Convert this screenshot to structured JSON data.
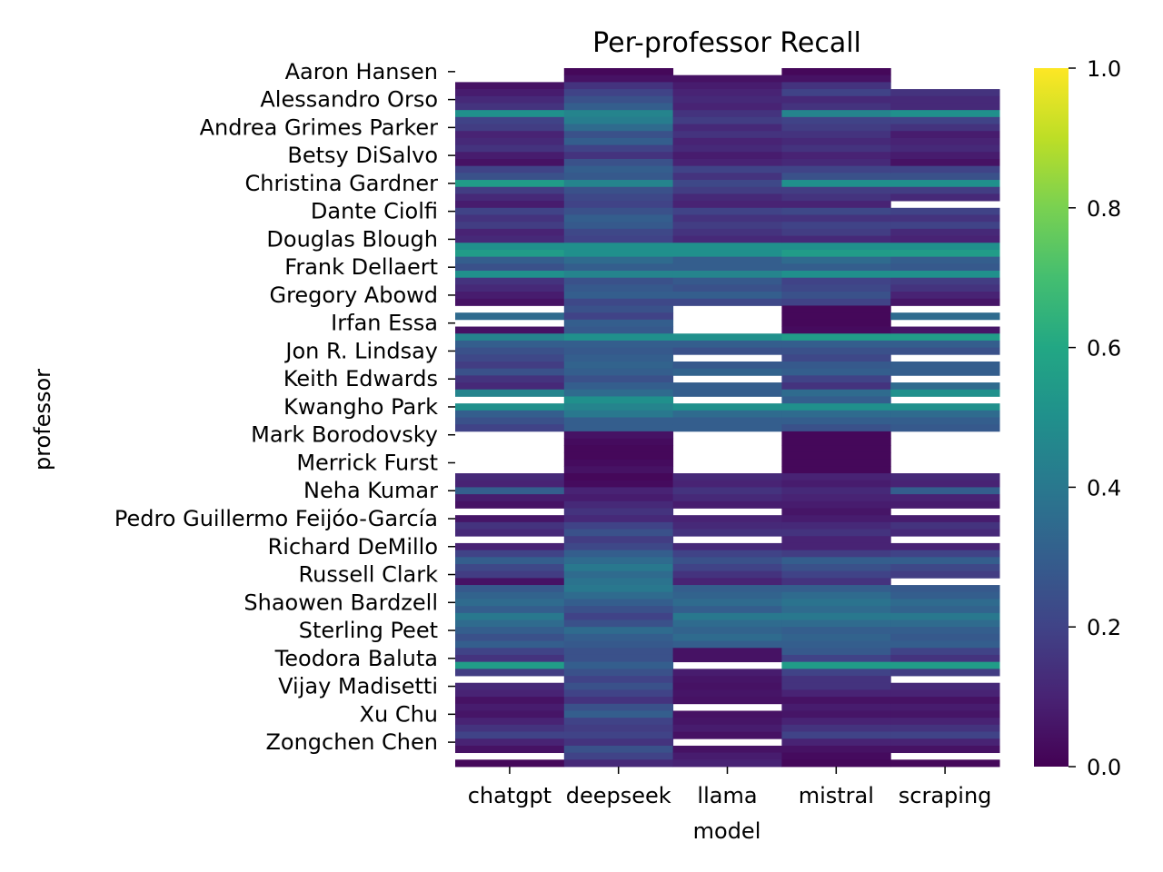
{
  "chart_data": {
    "type": "heatmap",
    "title": "Per-professor Recall",
    "xlabel": "model",
    "ylabel": "professor",
    "x_categories": [
      "chatgpt",
      "deepseek",
      "llama",
      "mistral",
      "scraping"
    ],
    "y_tick_labels": [
      "Aaron Hansen",
      "Alessandro Orso",
      "Andrea Grimes Parker",
      "Betsy DiSalvo",
      "Christina Gardner",
      "Dante Ciolfi",
      "Douglas Blough",
      "Frank Dellaert",
      "Gregory Abowd",
      "Irfan Essa",
      "Jon R. Lindsay",
      "Keith Edwards",
      "Kwangho Park",
      "Mark Borodovsky",
      "Merrick Furst",
      "Neha Kumar",
      "Pedro Guillermo Feijóo-García",
      "Richard DeMillo",
      "Russell Clark",
      "Shaowen Bardzell",
      "Sterling Peet",
      "Teodora Baluta",
      "Vijay Madisetti",
      "Xu Chu",
      "Zongchen Chen"
    ],
    "n_rows": 100,
    "colorbar": {
      "colormap": "viridis",
      "vmin": 0.0,
      "vmax": 1.0,
      "ticks": [
        "0.0",
        "0.2",
        "0.4",
        "0.6",
        "0.8",
        "1.0"
      ]
    },
    "row_values": {
      "chatgpt": [
        null,
        null,
        0.05,
        0.08,
        0.12,
        0.15,
        0.5,
        0.2,
        0.18,
        0.1,
        0.12,
        0.15,
        0.08,
        0.05,
        0.2,
        0.25,
        0.55,
        0.18,
        0.12,
        0.08,
        0.2,
        0.15,
        0.18,
        0.1,
        0.12,
        0.5,
        0.55,
        0.3,
        0.25,
        0.5,
        0.15,
        0.12,
        0.08,
        0.05,
        null,
        0.35,
        null,
        0.05,
        0.45,
        0.3,
        0.25,
        0.22,
        0.18,
        0.25,
        0.15,
        0.12,
        0.45,
        null,
        0.5,
        0.3,
        0.25,
        0.2,
        null,
        null,
        null,
        null,
        null,
        null,
        0.12,
        0.1,
        0.3,
        0.08,
        0.05,
        null,
        0.06,
        0.15,
        0.12,
        null,
        0.1,
        0.2,
        0.3,
        0.22,
        0.18,
        0.05,
        0.28,
        0.32,
        0.35,
        0.3,
        0.4,
        0.35,
        0.3,
        0.25,
        0.3,
        0.2,
        0.15,
        0.55,
        0.18,
        null,
        0.12,
        0.1,
        0.05,
        0.08,
        0.06,
        0.1,
        0.15,
        0.2,
        0.1,
        0.05,
        null,
        0.02
      ],
      "deepseek": [
        0.02,
        0.05,
        0.15,
        0.2,
        0.25,
        0.3,
        0.45,
        0.42,
        0.35,
        0.25,
        0.3,
        0.2,
        0.15,
        0.25,
        0.3,
        0.28,
        0.45,
        0.25,
        0.22,
        0.2,
        0.25,
        0.3,
        0.28,
        0.22,
        0.2,
        0.5,
        0.5,
        0.35,
        0.3,
        0.45,
        0.25,
        0.28,
        0.3,
        0.22,
        0.25,
        0.2,
        0.3,
        0.28,
        0.5,
        0.3,
        0.28,
        0.3,
        0.32,
        0.3,
        0.25,
        0.3,
        0.35,
        0.5,
        0.45,
        0.4,
        0.3,
        0.3,
        0.05,
        0.03,
        0.02,
        0.02,
        0.03,
        0.05,
        0.02,
        0.03,
        0.1,
        0.08,
        0.12,
        0.15,
        0.12,
        0.2,
        0.25,
        0.18,
        0.22,
        0.3,
        0.35,
        0.4,
        0.35,
        0.38,
        0.4,
        0.35,
        0.3,
        0.25,
        0.2,
        0.25,
        0.35,
        0.3,
        0.28,
        0.25,
        0.25,
        0.3,
        0.25,
        0.2,
        0.25,
        0.2,
        0.15,
        0.25,
        0.3,
        0.2,
        0.18,
        0.2,
        0.15,
        0.25,
        0.2,
        0.12
      ],
      "llama": [
        null,
        0.05,
        0.08,
        0.1,
        0.12,
        0.1,
        0.15,
        0.18,
        0.12,
        0.15,
        0.1,
        0.12,
        0.08,
        0.1,
        0.2,
        0.15,
        0.22,
        0.18,
        0.12,
        0.1,
        0.2,
        0.15,
        0.18,
        0.15,
        0.12,
        0.5,
        0.5,
        0.3,
        0.3,
        0.45,
        0.28,
        0.25,
        0.3,
        0.22,
        null,
        null,
        null,
        null,
        0.5,
        0.3,
        0.25,
        null,
        0.28,
        0.32,
        null,
        0.3,
        0.3,
        null,
        0.5,
        0.35,
        0.3,
        0.3,
        null,
        null,
        null,
        null,
        null,
        null,
        0.12,
        0.1,
        0.15,
        0.12,
        0.08,
        null,
        0.1,
        0.12,
        0.15,
        null,
        0.12,
        0.2,
        0.25,
        0.2,
        0.15,
        0.1,
        0.3,
        0.32,
        0.35,
        0.3,
        0.4,
        0.35,
        0.32,
        0.35,
        0.3,
        0.05,
        0.05,
        null,
        0.08,
        0.06,
        0.05,
        0.06,
        0.05,
        null,
        0.05,
        0.06,
        0.08,
        0.05,
        null,
        0.05,
        0.08,
        0.1
      ],
      "mistral": [
        0.02,
        0.05,
        0.15,
        0.2,
        0.12,
        0.15,
        0.45,
        0.2,
        0.18,
        0.15,
        0.12,
        0.15,
        0.1,
        0.12,
        0.2,
        0.25,
        0.5,
        0.18,
        0.15,
        0.1,
        0.22,
        0.15,
        0.2,
        0.18,
        0.12,
        0.5,
        0.55,
        0.35,
        0.3,
        0.5,
        0.2,
        0.22,
        0.25,
        0.2,
        0.02,
        0.02,
        0.02,
        0.03,
        0.55,
        0.3,
        0.25,
        0.22,
        0.28,
        0.3,
        0.2,
        0.15,
        0.35,
        0.3,
        0.5,
        0.35,
        0.3,
        0.25,
        0.02,
        0.02,
        0.02,
        0.02,
        0.02,
        0.02,
        0.1,
        0.08,
        0.12,
        0.1,
        0.08,
        0.06,
        0.08,
        0.12,
        0.15,
        0.1,
        0.1,
        0.18,
        0.3,
        0.25,
        0.2,
        0.15,
        0.3,
        0.35,
        0.38,
        0.35,
        0.4,
        0.35,
        0.3,
        0.32,
        0.3,
        0.28,
        0.2,
        0.55,
        0.2,
        0.15,
        0.15,
        0.1,
        0.05,
        0.08,
        0.06,
        0.1,
        0.15,
        0.2,
        0.1,
        0.05,
        0.03,
        0.02
      ],
      "scraping": [
        null,
        null,
        null,
        0.15,
        0.12,
        0.12,
        0.5,
        0.2,
        0.15,
        0.08,
        0.1,
        0.12,
        0.08,
        0.05,
        0.2,
        0.25,
        0.5,
        0.18,
        0.12,
        null,
        0.2,
        0.15,
        0.2,
        0.12,
        0.1,
        0.5,
        0.55,
        0.3,
        0.28,
        0.5,
        0.18,
        0.15,
        0.1,
        0.06,
        null,
        0.35,
        null,
        0.06,
        0.55,
        0.3,
        0.25,
        null,
        0.3,
        0.3,
        null,
        0.35,
        0.5,
        null,
        0.5,
        0.35,
        0.3,
        0.28,
        null,
        null,
        null,
        null,
        null,
        null,
        0.12,
        0.1,
        0.3,
        0.1,
        0.08,
        null,
        0.08,
        0.15,
        0.12,
        null,
        0.1,
        0.2,
        0.3,
        0.22,
        0.18,
        null,
        0.28,
        0.3,
        0.35,
        0.32,
        0.4,
        0.35,
        0.3,
        0.28,
        0.3,
        0.2,
        0.15,
        0.55,
        0.18,
        null,
        0.12,
        0.1,
        0.05,
        0.08,
        0.06,
        0.1,
        0.15,
        0.2,
        0.1,
        0.05,
        null,
        0.02
      ]
    }
  }
}
